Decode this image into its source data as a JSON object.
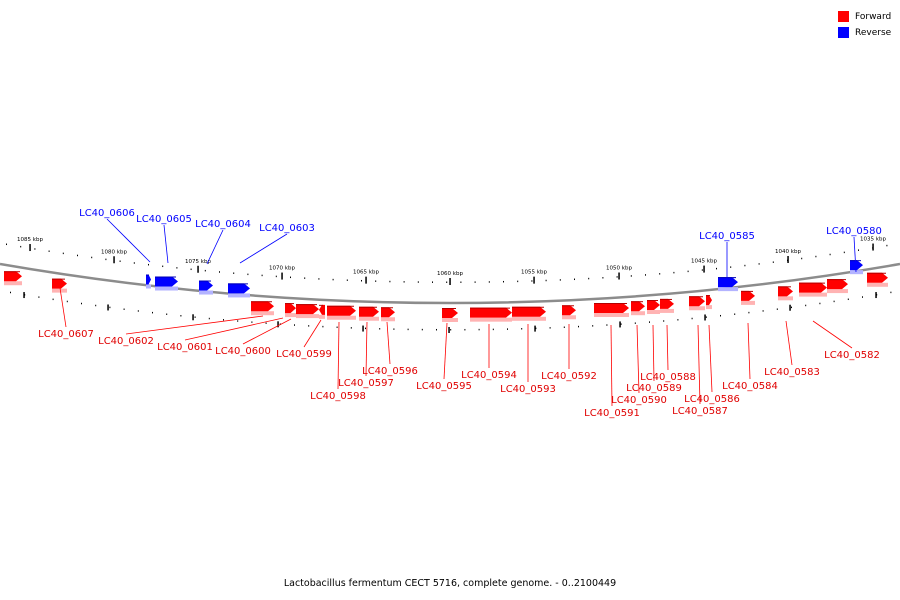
{
  "legend": {
    "forward_label": "Forward",
    "reverse_label": "Reverse",
    "forward_color": "#ff0000",
    "reverse_color": "#0000ff"
  },
  "caption": "Lactobacillus fermentum CECT 5716, complete genome. - 0..2100449",
  "scale_labels": [
    "1085 kbp",
    "1080 kbp",
    "1075 kbp",
    "1070 kbp",
    "1065 kbp",
    "1060 kbp",
    "1055 kbp",
    "1050 kbp",
    "1045 kbp",
    "1040 kbp",
    "1035 kbp"
  ],
  "reverse_genes": [
    "LC40_0606",
    "LC40_0605",
    "LC40_0604",
    "LC40_0603",
    "LC40_0585",
    "LC40_0580"
  ],
  "forward_genes": [
    "LC40_0607",
    "LC40_0602",
    "LC40_0601",
    "LC40_0600",
    "LC40_0599",
    "LC40_0598",
    "LC40_0597",
    "LC40_0596",
    "LC40_0595",
    "LC40_0594",
    "LC40_0593",
    "LC40_0592",
    "LC40_0591",
    "LC40_0590",
    "LC40_0589",
    "LC40_0588",
    "LC40_0587",
    "LC40_0586",
    "LC40_0584",
    "LC40_0583",
    "LC40_0582"
  ]
}
